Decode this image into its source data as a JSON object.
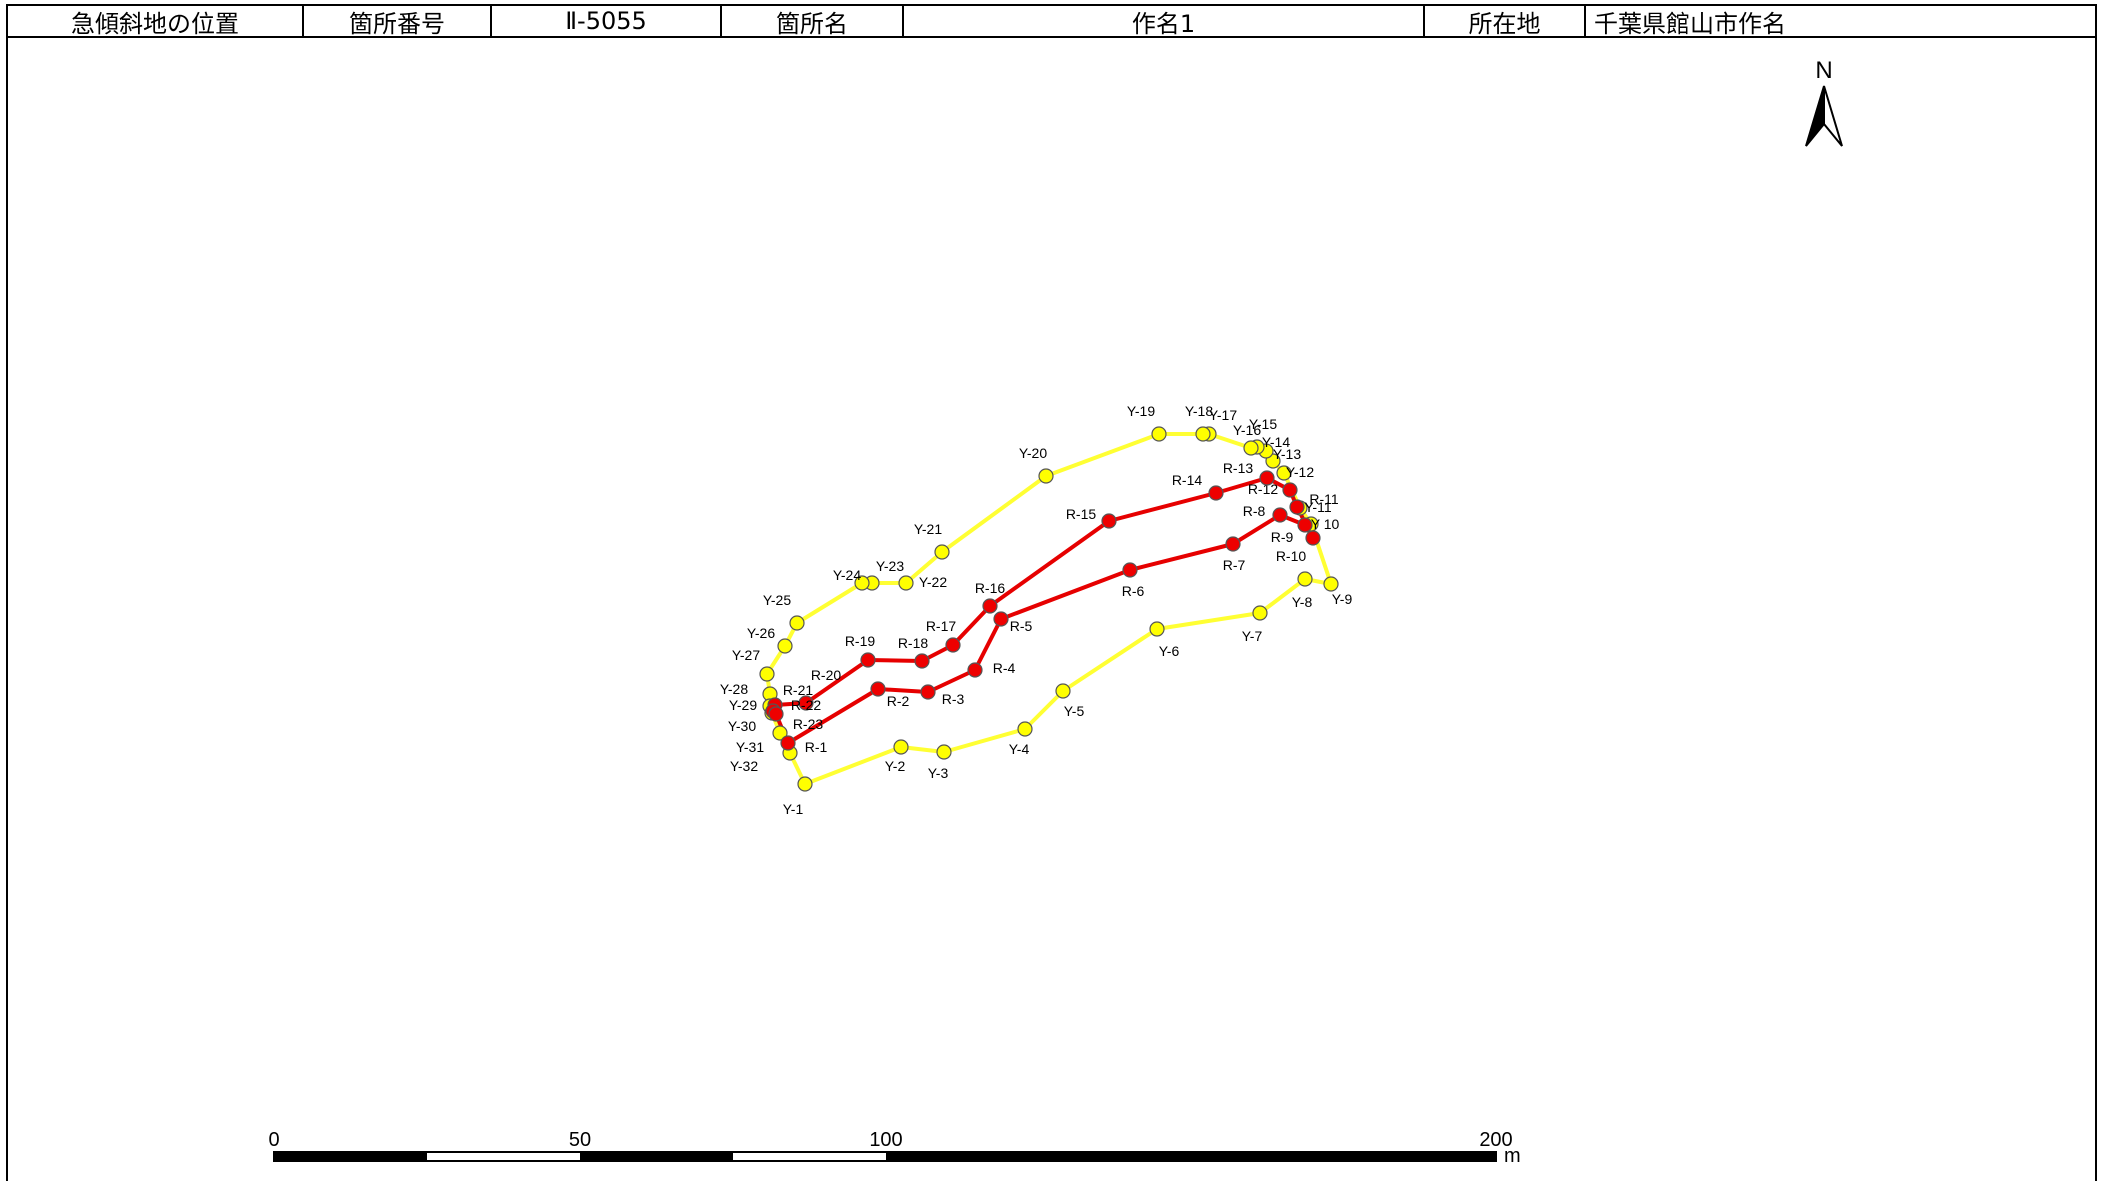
{
  "header": {
    "cells": [
      {
        "key": "title",
        "text": "急傾斜地の位置"
      },
      {
        "key": "no_label",
        "text": "箇所番号"
      },
      {
        "key": "no_value",
        "text": "Ⅱ-5055"
      },
      {
        "key": "name_label",
        "text": "箇所名"
      },
      {
        "key": "name_value",
        "text": "作名1"
      },
      {
        "key": "loc_label",
        "text": "所在地"
      },
      {
        "key": "loc_value",
        "text": "千葉県館山市作名"
      }
    ]
  },
  "north_arrow": {
    "label": "N",
    "icon": "north-arrow-icon"
  },
  "scale_bar": {
    "ticks": [
      "0",
      "50",
      "100",
      "200"
    ],
    "unit": "m"
  },
  "colors": {
    "yellow_line": "#ffff33",
    "yellow_fill": "#ffff00",
    "red_line": "#e60000",
    "red_fill": "#ee0000"
  },
  "yellow_points": [
    {
      "id": "Y-1",
      "label": "Y-1"
    },
    {
      "id": "Y-2",
      "label": "Y-2"
    },
    {
      "id": "Y-3",
      "label": "Y-3"
    },
    {
      "id": "Y-4",
      "label": "Y-4"
    },
    {
      "id": "Y-5",
      "label": "Y-5"
    },
    {
      "id": "Y-6",
      "label": "Y-6"
    },
    {
      "id": "Y-7",
      "label": "Y-7"
    },
    {
      "id": "Y-8",
      "label": "Y-8"
    },
    {
      "id": "Y-9",
      "label": "Y-9"
    },
    {
      "id": "Y-10",
      "label": "Y 10"
    },
    {
      "id": "Y-11",
      "label": "Y-11"
    },
    {
      "id": "Y-12",
      "label": "Y-12"
    },
    {
      "id": "Y-13",
      "label": "Y-13"
    },
    {
      "id": "Y-14",
      "label": "Y-14"
    },
    {
      "id": "Y-15",
      "label": "Y-15"
    },
    {
      "id": "Y-16",
      "label": "Y-16"
    },
    {
      "id": "Y-17",
      "label": "Y-17"
    },
    {
      "id": "Y-18",
      "label": "Y-18"
    },
    {
      "id": "Y-19",
      "label": "Y-19"
    },
    {
      "id": "Y-20",
      "label": "Y-20"
    },
    {
      "id": "Y-21",
      "label": "Y-21"
    },
    {
      "id": "Y-22",
      "label": "Y-22"
    },
    {
      "id": "Y-23",
      "label": "Y-23"
    },
    {
      "id": "Y-24",
      "label": "Y-24"
    },
    {
      "id": "Y-25",
      "label": "Y-25"
    },
    {
      "id": "Y-26",
      "label": "Y-26"
    },
    {
      "id": "Y-27",
      "label": "Y-27"
    },
    {
      "id": "Y-28",
      "label": "Y-28"
    },
    {
      "id": "Y-29",
      "label": "Y-29"
    },
    {
      "id": "Y-30",
      "label": "Y-30"
    },
    {
      "id": "Y-31",
      "label": "Y-31"
    },
    {
      "id": "Y-32",
      "label": "Y-32"
    }
  ],
  "red_points": [
    {
      "id": "R-1",
      "label": "R-1"
    },
    {
      "id": "R-2",
      "label": "R-2"
    },
    {
      "id": "R-3",
      "label": "R-3"
    },
    {
      "id": "R-4",
      "label": "R-4"
    },
    {
      "id": "R-5",
      "label": "R-5"
    },
    {
      "id": "R-6",
      "label": "R-6"
    },
    {
      "id": "R-7",
      "label": "R-7"
    },
    {
      "id": "R-8",
      "label": "R-8"
    },
    {
      "id": "R-9",
      "label": "R-9"
    },
    {
      "id": "R-10",
      "label": "R-10"
    },
    {
      "id": "R-11",
      "label": "R-11"
    },
    {
      "id": "R-12",
      "label": "R-12"
    },
    {
      "id": "R-13",
      "label": "R-13"
    },
    {
      "id": "R-14",
      "label": "R-14"
    },
    {
      "id": "R-15",
      "label": "R-15"
    },
    {
      "id": "R-16",
      "label": "R-16"
    },
    {
      "id": "R-17",
      "label": "R-17"
    },
    {
      "id": "R-18",
      "label": "R-18"
    },
    {
      "id": "R-19",
      "label": "R-19"
    },
    {
      "id": "R-20",
      "label": "R-20"
    },
    {
      "id": "R-21",
      "label": "R-21"
    },
    {
      "id": "R-22",
      "label": "R-22"
    },
    {
      "id": "R-23",
      "label": "R-23"
    }
  ]
}
